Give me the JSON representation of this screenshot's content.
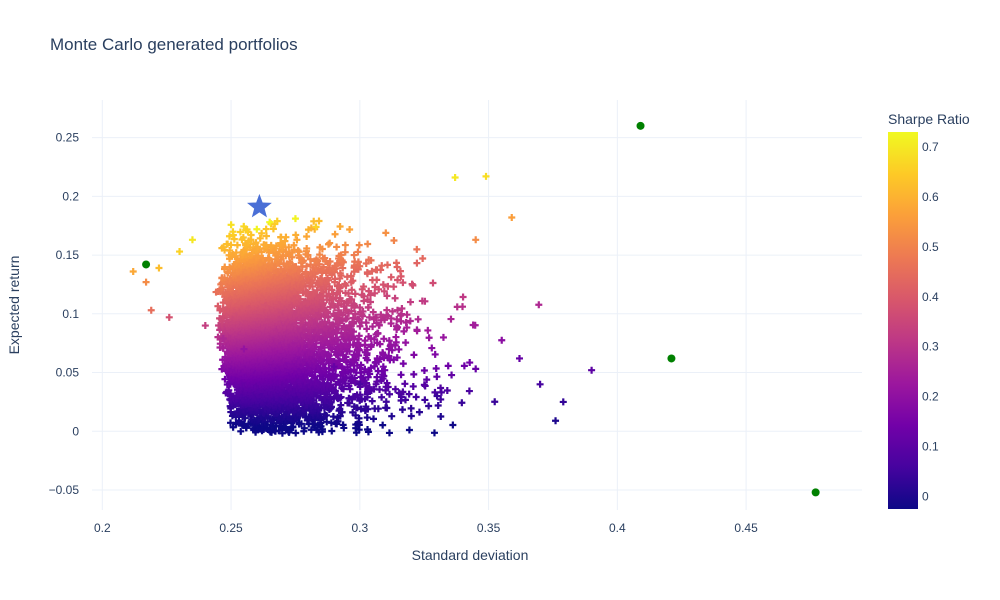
{
  "chart_data": {
    "type": "scatter",
    "title": "Monte Carlo generated portfolios",
    "xlabel": "Standard deviation",
    "ylabel": "Expected return",
    "xlim": [
      0.196,
      0.495
    ],
    "ylim": [
      -0.067,
      0.282
    ],
    "xticks": [
      "0.2",
      "0.25",
      "0.3",
      "0.35",
      "0.4",
      "0.45"
    ],
    "yticks": [
      "−0.05",
      "0",
      "0.05",
      "0.1",
      "0.15",
      "0.2",
      "0.25"
    ],
    "grid": true,
    "colorbar": {
      "title": "Sharpe Ratio",
      "range": [
        -0.025,
        0.73
      ],
      "ticks": [
        "0",
        "0.1",
        "0.2",
        "0.3",
        "0.4",
        "0.5",
        "0.6",
        "0.7"
      ],
      "colorscale": [
        "#0d0887",
        "#46039f",
        "#7201a8",
        "#9c179e",
        "#bd3786",
        "#d8576b",
        "#ed7953",
        "#fb9f3a",
        "#fdca26",
        "#f0f921"
      ]
    },
    "series": [
      {
        "marker": "cross",
        "description_points": "cloud of ~10000 simulated portfolios colored by Sharpe ratio",
        "values": [
          [
            0.212,
            0.136,
            0.58
          ],
          [
            0.217,
            0.127,
            0.52
          ],
          [
            0.219,
            0.103,
            0.45
          ],
          [
            0.222,
            0.139,
            0.62
          ],
          [
            0.226,
            0.097,
            0.38
          ],
          [
            0.23,
            0.153,
            0.66
          ],
          [
            0.235,
            0.163,
            0.7
          ],
          [
            0.24,
            0.09,
            0.33
          ],
          [
            0.247,
            0.079,
            0.27
          ],
          [
            0.255,
            0.07,
            0.21
          ],
          [
            0.26,
            0.172,
            0.72
          ],
          [
            0.265,
            0.178,
            0.73
          ],
          [
            0.275,
            0.181,
            0.72
          ],
          [
            0.283,
            0.174,
            0.66
          ],
          [
            0.29,
            0.055,
            0.12
          ],
          [
            0.3,
            0.04,
            0.07
          ],
          [
            0.31,
            0.02,
            0.02
          ],
          [
            0.32,
            0.013,
            0.01
          ],
          [
            0.33,
            0.03,
            0.04
          ],
          [
            0.337,
            0.216,
            0.7
          ],
          [
            0.349,
            0.217,
            0.68
          ],
          [
            0.345,
            0.163,
            0.52
          ],
          [
            0.359,
            0.182,
            0.56
          ],
          [
            0.362,
            0.062,
            0.12
          ],
          [
            0.37,
            0.04,
            0.06
          ],
          [
            0.376,
            0.009,
            0.0
          ],
          [
            0.379,
            0.025,
            0.03
          ],
          [
            0.39,
            0.052,
            0.1
          ]
        ]
      },
      {
        "marker": "circle",
        "color": "#008000",
        "values": [
          [
            0.217,
            0.142
          ],
          [
            0.409,
            0.26
          ],
          [
            0.421,
            0.062
          ],
          [
            0.477,
            -0.052
          ]
        ]
      },
      {
        "marker": "star",
        "color": "#4a6fd6",
        "values": [
          [
            0.261,
            0.191
          ]
        ]
      }
    ]
  }
}
